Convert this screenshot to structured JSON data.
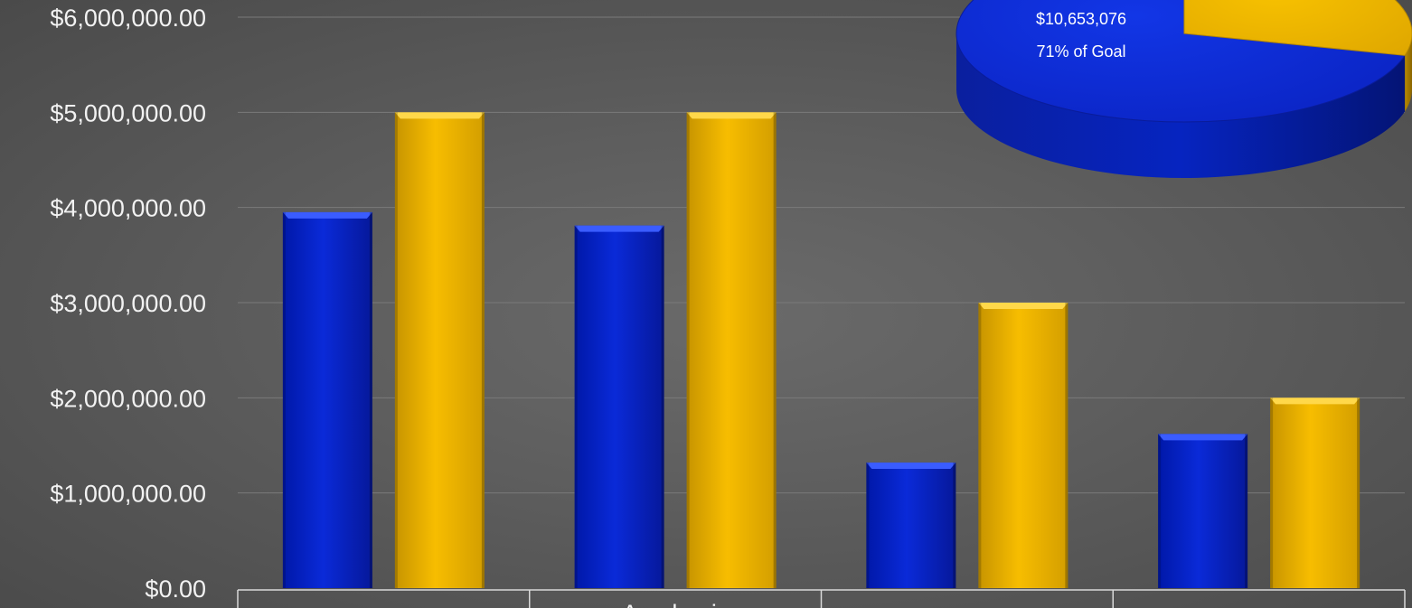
{
  "chart_data": [
    {
      "type": "bar",
      "title": "",
      "xlabel": "",
      "ylabel": "",
      "ylim": [
        0,
        6000000
      ],
      "y_ticks": [
        "$0.00",
        "$1,000,000.00",
        "$2,000,000.00",
        "$3,000,000.00",
        "$4,000,000.00",
        "$5,000,000.00",
        "$6,000,000.00"
      ],
      "y_tick_values": [
        0,
        1000000,
        2000000,
        3000000,
        4000000,
        5000000,
        6000000
      ],
      "categories": [
        "",
        "Academic",
        "",
        ""
      ],
      "grid": true,
      "series": [
        {
          "color": "#0a22c8",
          "values": [
            3950000,
            3810000,
            1320000,
            1620000
          ]
        },
        {
          "color": "#f5b800",
          "values": [
            5000000,
            5000000,
            3000000,
            2000000
          ]
        }
      ]
    },
    {
      "type": "pie",
      "style": "3d",
      "slices": [
        {
          "value": 71,
          "color": "#0a22c8",
          "label_amount": "$10,653,076",
          "label_percent": "71% of Goal"
        },
        {
          "value": 29,
          "color": "#f5b800"
        }
      ]
    }
  ]
}
